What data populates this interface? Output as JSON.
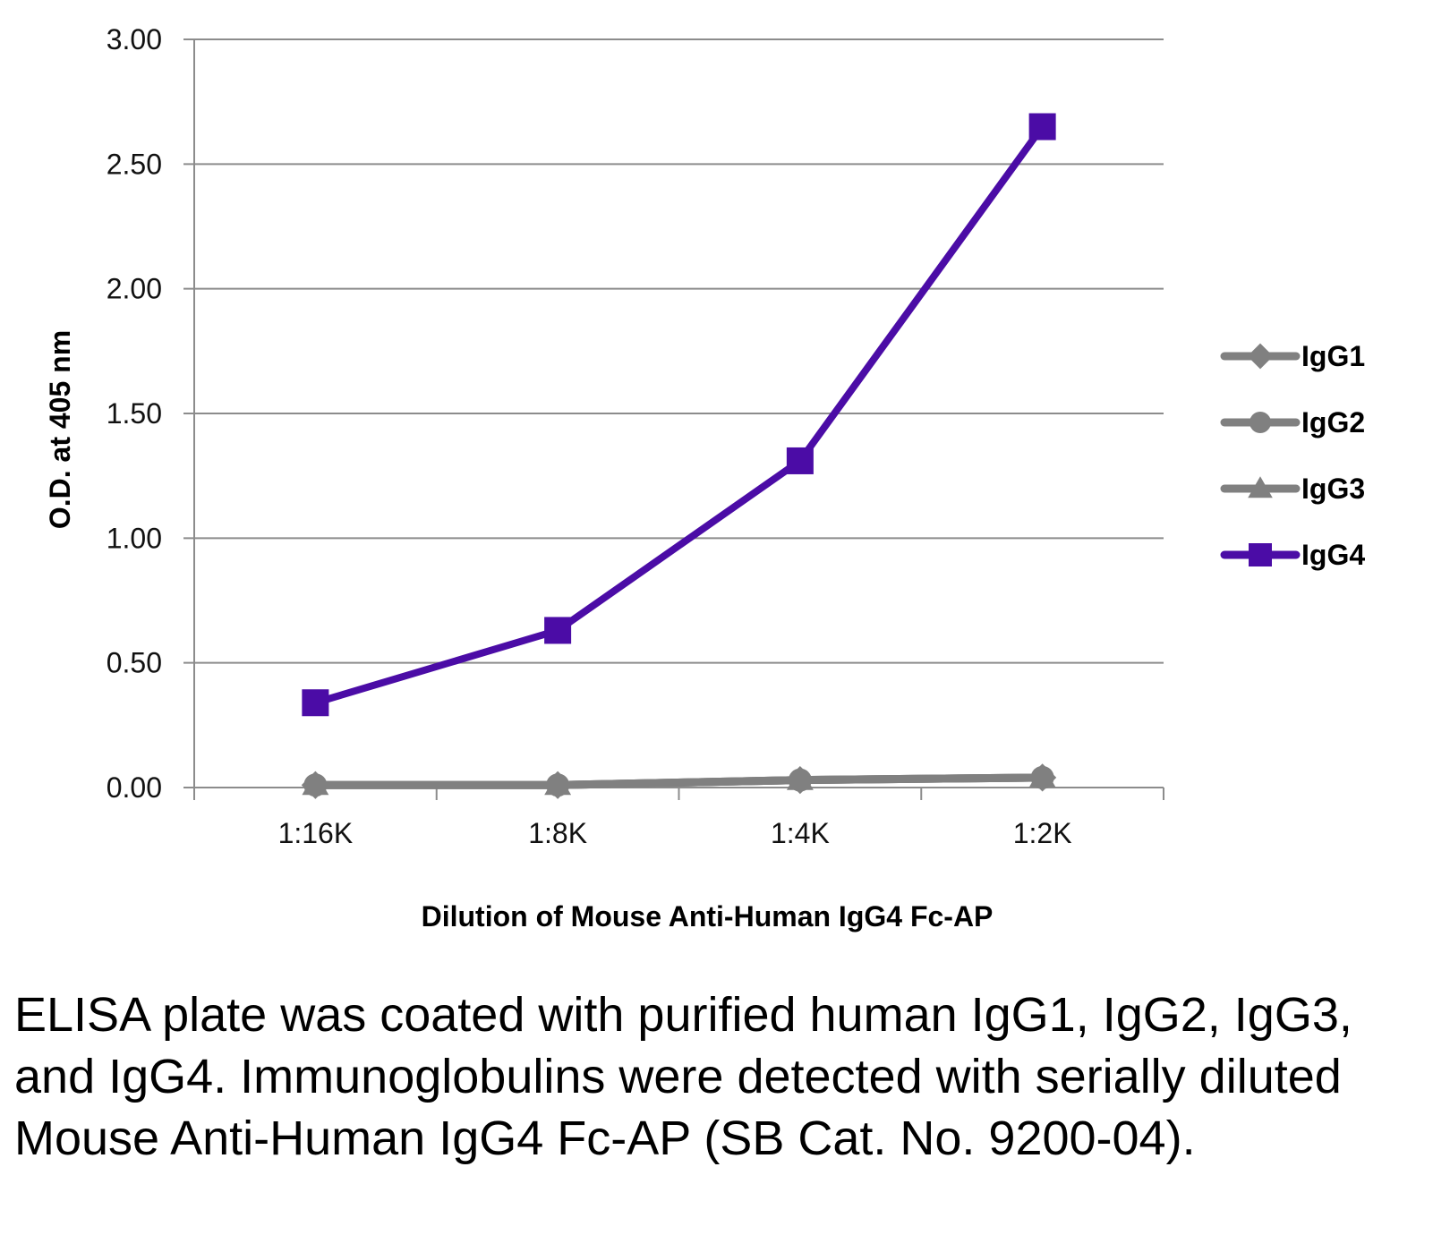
{
  "chart_data": {
    "type": "line",
    "categories": [
      "1:16K",
      "1:8K",
      "1:4K",
      "1:2K"
    ],
    "series": [
      {
        "name": "IgG1",
        "values": [
          0.01,
          0.01,
          0.03,
          0.04
        ],
        "color": "#808080",
        "marker": "diamond"
      },
      {
        "name": "IgG2",
        "values": [
          0.01,
          0.01,
          0.03,
          0.04
        ],
        "color": "#808080",
        "marker": "circle"
      },
      {
        "name": "IgG3",
        "values": [
          0.01,
          0.01,
          0.03,
          0.04
        ],
        "color": "#808080",
        "marker": "triangle"
      },
      {
        "name": "IgG4",
        "values": [
          0.34,
          0.63,
          1.31,
          2.65
        ],
        "color": "#4B0CA6",
        "marker": "square"
      }
    ],
    "yticks": [
      "0.00",
      "0.50",
      "1.00",
      "1.50",
      "2.00",
      "2.50",
      "3.00"
    ],
    "ylim": [
      0,
      3
    ],
    "xlabel": "Dilution of Mouse Anti-Human IgG4 Fc-AP",
    "ylabel": "O.D. at 405 nm",
    "grid": true,
    "legend_position": "right"
  },
  "caption": "ELISA plate was coated with purified human IgG1, IgG2, IgG3, and IgG4.  Immunoglobulins were detected with serially diluted Mouse Anti-Human IgG4 Fc-AP (SB Cat. No. 9200-04)."
}
